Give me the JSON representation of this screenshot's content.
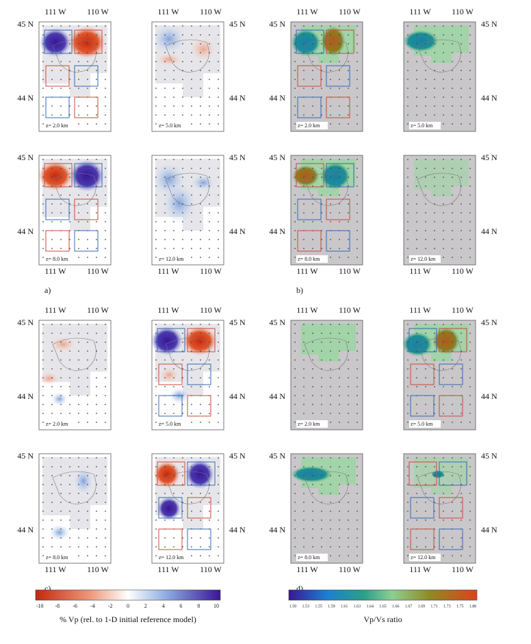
{
  "groups": [
    {
      "label": "a)",
      "lon_labels": [
        "111 W",
        "110 W"
      ],
      "lat_labels": [
        "45 N",
        "44 N"
      ],
      "panels": [
        {
          "depth": "z= 2.0 km"
        },
        {
          "depth": "z= 5.0 km"
        },
        {
          "depth": "z= 8.0 km"
        },
        {
          "depth": "z= 12.0 km"
        }
      ]
    },
    {
      "label": "b)",
      "lon_labels": [
        "111 W",
        "110 W"
      ],
      "lat_labels": [
        "45 N",
        "44 N"
      ],
      "panels": [
        {
          "depth": "z= 2.0 km"
        },
        {
          "depth": "z= 5.0 km"
        },
        {
          "depth": "z= 8.0 km"
        },
        {
          "depth": "z= 12.0 km"
        }
      ]
    },
    {
      "label": "c)",
      "lon_labels": [
        "111 W",
        "110 W"
      ],
      "lat_labels": [
        "45 N",
        "44 N"
      ],
      "panels": [
        {
          "depth": "z= 2.0 km"
        },
        {
          "depth": "z= 5.0 km"
        },
        {
          "depth": "z= 8.0 km"
        },
        {
          "depth": "z= 12.0 km"
        }
      ]
    },
    {
      "label": "d)",
      "lon_labels": [
        "111 W",
        "110 W"
      ],
      "lat_labels": [
        "45 N",
        "44 N"
      ],
      "panels": [
        {
          "depth": "z= 2.0 km"
        },
        {
          "depth": "z= 5.0 km"
        },
        {
          "depth": "z= 8.0 km"
        },
        {
          "depth": "z= 12.0 km"
        }
      ]
    }
  ],
  "colorbars": [
    {
      "ticks": [
        "-10",
        "-8",
        "-6",
        "-4",
        "-2",
        "0",
        "2",
        "4",
        "6",
        "8",
        "10"
      ],
      "title": "% Vp (rel. to 1-D initial reference model)"
    },
    {
      "ticks": [
        "1.50",
        "1.53",
        "1.55",
        "1.59",
        "1.61",
        "1.63",
        "1.64",
        "1.65",
        "1.66",
        "1.67",
        "1.69",
        "1.71",
        "1.73",
        "1.75",
        "1.80"
      ],
      "title": "Vp/Vs ratio"
    }
  ]
}
